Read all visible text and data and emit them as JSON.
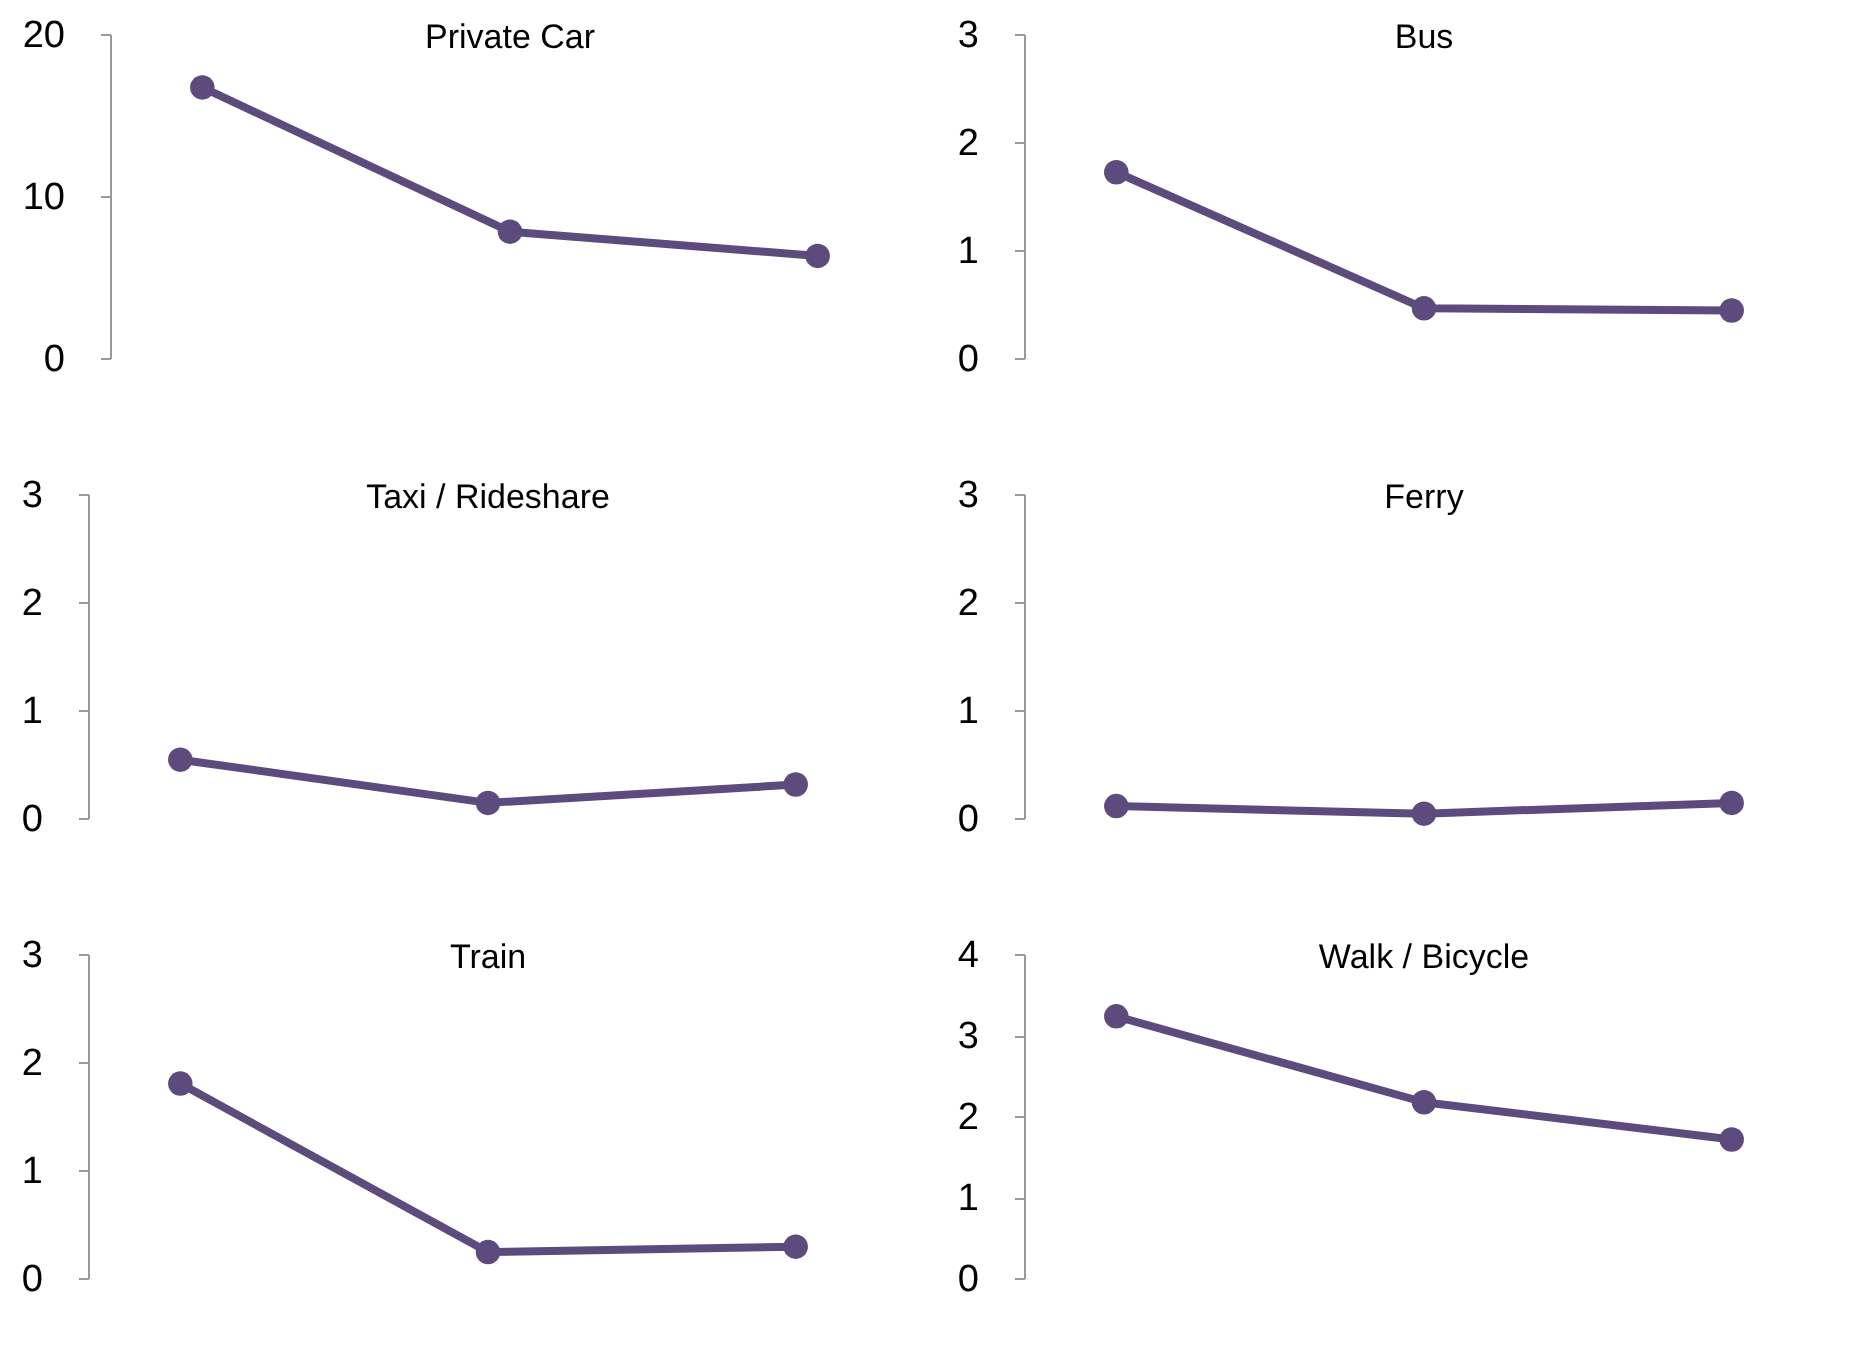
{
  "chart_data": [
    {
      "type": "line",
      "title": "Private Car",
      "categories": [
        null,
        null,
        null
      ],
      "values": [
        16.7,
        7.8,
        6.3
      ],
      "color": "#5e4b7e",
      "ylim": [
        0,
        20
      ],
      "yticks": [
        0,
        10,
        20
      ],
      "marker": "circle",
      "grid": false
    },
    {
      "type": "line",
      "title": "Bus",
      "categories": [
        null,
        null,
        null
      ],
      "values": [
        1.72,
        0.46,
        0.44
      ],
      "color": "#5e4b7e",
      "ylim": [
        0,
        3
      ],
      "yticks": [
        0,
        1,
        2,
        3
      ],
      "marker": "circle",
      "grid": false
    },
    {
      "type": "line",
      "title": "Taxi / Rideshare",
      "categories": [
        null,
        null,
        null
      ],
      "values": [
        0.54,
        0.14,
        0.31
      ],
      "color": "#5e4b7e",
      "ylim": [
        0,
        3
      ],
      "yticks": [
        0,
        1,
        2,
        3
      ],
      "marker": "circle",
      "grid": false
    },
    {
      "type": "line",
      "title": "Ferry",
      "categories": [
        null,
        null,
        null
      ],
      "values": [
        0.11,
        0.04,
        0.14
      ],
      "color": "#5e4b7e",
      "ylim": [
        0,
        3
      ],
      "yticks": [
        0,
        1,
        2,
        3
      ],
      "marker": "circle",
      "grid": false
    },
    {
      "type": "line",
      "title": "Train",
      "categories": [
        null,
        null,
        null
      ],
      "values": [
        1.8,
        0.24,
        0.29
      ],
      "color": "#5e4b7e",
      "ylim": [
        0,
        3
      ],
      "yticks": [
        0,
        1,
        2,
        3
      ],
      "marker": "circle",
      "grid": false
    },
    {
      "type": "line",
      "title": "Walk / Bicycle",
      "categories": [
        null,
        null,
        null
      ],
      "values": [
        3.23,
        2.17,
        1.71
      ],
      "color": "#5e4b7e",
      "ylim": [
        0,
        4
      ],
      "yticks": [
        0,
        1,
        2,
        3,
        4
      ],
      "marker": "circle",
      "grid": false
    }
  ]
}
